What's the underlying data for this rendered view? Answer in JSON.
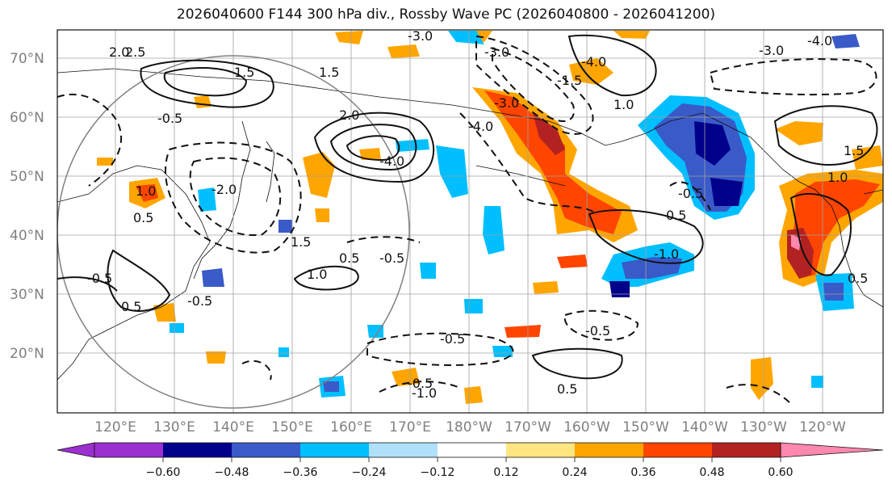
{
  "title": "2026040600 F144 300 hPa div., Rossby Wave PC (2026040800 - 2026041200)",
  "lat_ticks": [
    "70°N",
    "60°N",
    "50°N",
    "40°N",
    "30°N",
    "20°N"
  ],
  "lon_ticks": [
    "120°E",
    "130°E",
    "140°E",
    "150°E",
    "160°E",
    "170°E",
    "180°W",
    "170°W",
    "160°W",
    "150°W",
    "140°W",
    "130°W",
    "120°W"
  ],
  "colorbar": {
    "ticks": [
      "−0.60",
      "−0.48",
      "−0.36",
      "−0.24",
      "−0.12",
      "0.12",
      "0.24",
      "0.36",
      "0.48",
      "0.60"
    ],
    "colors": [
      "#9b30d0",
      "#00008b",
      "#3a5ac8",
      "#00bfff",
      "#b0e0fa",
      "#ffffff",
      "#ffe680",
      "#ffa500",
      "#ff4500",
      "#b22222",
      "#ff88b0"
    ]
  },
  "contour_labels": [
    "-0.5",
    "-0.5",
    "-0.5",
    "-0.5",
    "0.5",
    "1.0",
    "1.5",
    "2.0",
    "2.5",
    "-2.0",
    "-4.0",
    "-3.0",
    "-4.0",
    "-3.0",
    "-1.5",
    "-0.5",
    "0.5",
    "-1.0",
    "-1.0",
    "1.0",
    "0.5",
    "-0.5",
    "-0.5",
    "1.0",
    "0.5",
    "-0.5",
    "1.0"
  ]
}
